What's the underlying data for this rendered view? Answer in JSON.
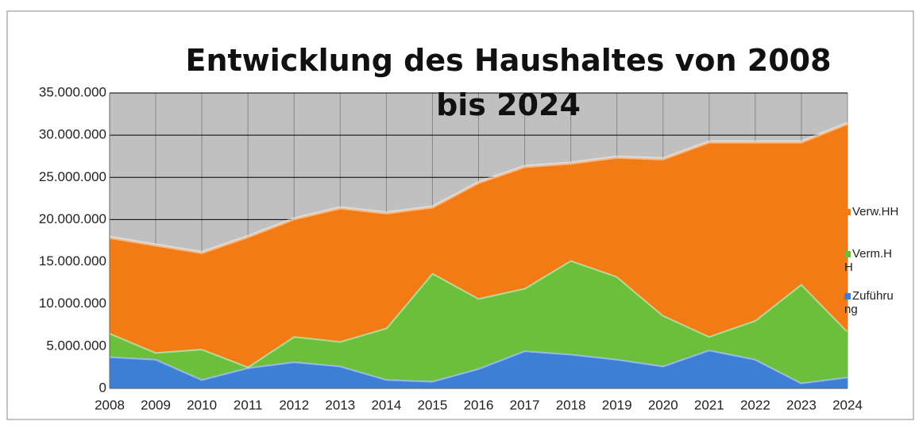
{
  "chart_data": {
    "type": "area",
    "title": "Entwicklung des Haushaltes von 2008 bis 2024",
    "categories": [
      "2008",
      "2009",
      "2010",
      "2011",
      "2012",
      "2013",
      "2014",
      "2015",
      "2016",
      "2017",
      "2018",
      "2019",
      "2020",
      "2021",
      "2022",
      "2023",
      "2024"
    ],
    "series": [
      {
        "name": "Zuführung",
        "color": "#3e7fd6",
        "values": [
          3800000,
          3500000,
          1100000,
          2500000,
          3200000,
          2700000,
          1100000,
          900000,
          2400000,
          4500000,
          4100000,
          3500000,
          2700000,
          4600000,
          3500000,
          700000,
          1400000
        ]
      },
      {
        "name": "Verm.HH",
        "color": "#6cbf3a",
        "values": [
          2800000,
          800000,
          3600000,
          100000,
          3000000,
          2900000,
          6100000,
          12800000,
          8300000,
          7400000,
          11100000,
          9800000,
          6000000,
          1600000,
          4600000,
          11700000,
          5400000
        ]
      },
      {
        "name": "Verw.HH",
        "color": "#f27b16",
        "values": [
          11300000,
          12700000,
          11400000,
          15400000,
          13900000,
          15800000,
          13600000,
          7800000,
          13700000,
          14400000,
          11500000,
          14100000,
          18500000,
          23000000,
          21100000,
          16800000,
          24600000
        ]
      }
    ],
    "stacked": true,
    "ylim": [
      0,
      35000000
    ],
    "yticks": [
      0,
      {
        "value": 5000000,
        "label": "5.000.000"
      },
      {
        "value": 10000000,
        "label": "10.000.000"
      },
      {
        "value": 15000000,
        "label": "15.000.000"
      },
      {
        "value": 20000000,
        "label": "20.000.000"
      },
      {
        "value": 25000000,
        "label": "25.000.000"
      },
      {
        "value": 30000000,
        "label": "30.000.000"
      },
      {
        "value": 35000000,
        "label": "35.000.000"
      }
    ],
    "grid": true
  }
}
